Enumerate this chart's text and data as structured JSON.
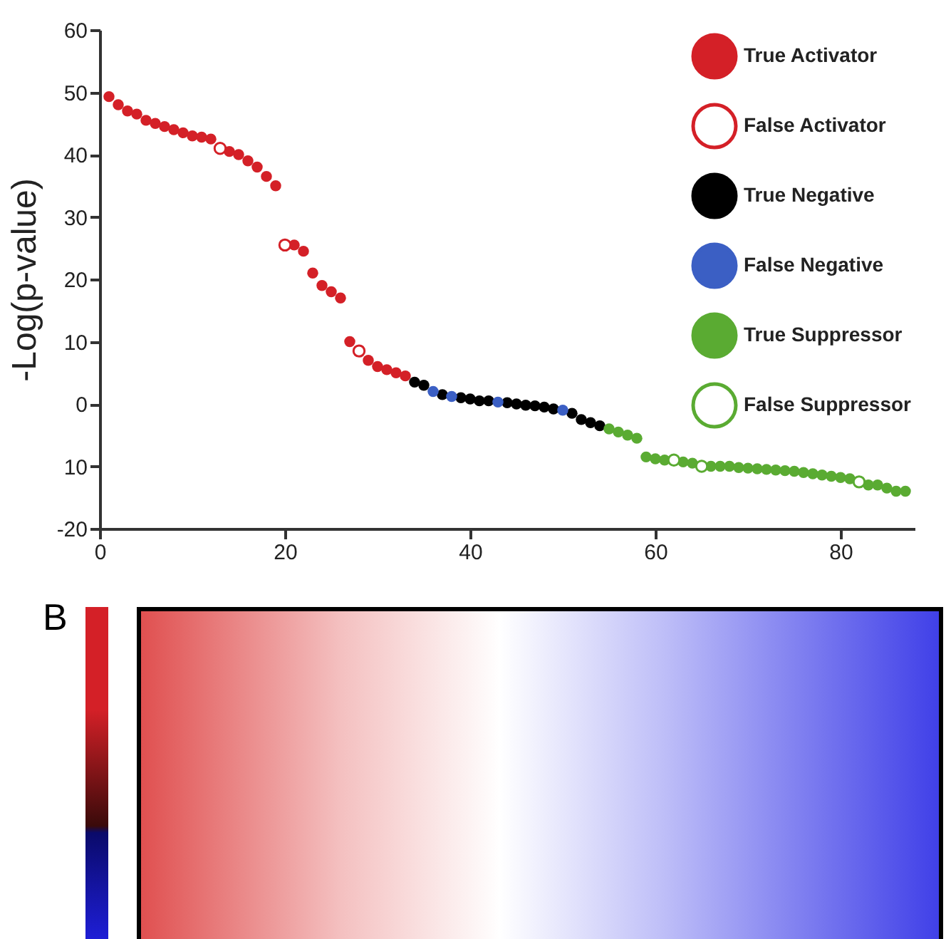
{
  "chart_data": {
    "type": "scatter",
    "ylabel": "-Log(p-value)",
    "xlim": [
      0,
      88
    ],
    "xticks": [
      0,
      20,
      40,
      60,
      80
    ],
    "ylim": [
      -20,
      60
    ],
    "yticks": [
      {
        "value": -20,
        "label": "-20"
      },
      {
        "value": -10,
        "label": "10"
      },
      0,
      10,
      20,
      30,
      40,
      50,
      60
    ],
    "legend": "top right",
    "grid": false,
    "annotations": [
      "B"
    ],
    "series": [
      {
        "name": "True Activator",
        "color": "#d42027",
        "marker": "circle",
        "x": [
          1,
          2,
          3,
          4,
          5,
          6,
          7,
          8,
          9,
          10,
          11,
          12,
          14,
          15,
          16,
          17,
          18,
          19,
          21,
          22,
          23,
          24,
          25,
          26,
          27,
          29,
          30,
          31,
          32,
          33
        ],
        "values": [
          49.3,
          48,
          47,
          46.5,
          45.5,
          45,
          44.5,
          44,
          43.5,
          43,
          42.8,
          42.5,
          40.5,
          40,
          39,
          38,
          36.5,
          35,
          25.5,
          24.5,
          21,
          19,
          18,
          17,
          10,
          7,
          6,
          5.5,
          5,
          4.5
        ]
      },
      {
        "name": "False Activator",
        "color": "#d42027",
        "marker": "open circle",
        "x": [
          13,
          20,
          28
        ],
        "values": [
          41,
          25.5,
          8.5
        ]
      },
      {
        "name": "True Negative",
        "color": "#000000",
        "marker": "circle",
        "x": [
          34,
          35,
          37,
          39,
          40,
          41,
          42,
          44,
          45,
          46,
          47,
          48,
          49,
          51,
          52,
          53,
          54
        ],
        "values": [
          3.5,
          3,
          1.5,
          1,
          0.8,
          0.5,
          0.5,
          0.2,
          0,
          -0.2,
          -0.3,
          -0.5,
          -0.8,
          -1.5,
          -2.5,
          -3,
          -3.5
        ]
      },
      {
        "name": "False Negative",
        "color": "#3b5fc4",
        "marker": "circle",
        "x": [
          36,
          38,
          43,
          50
        ],
        "values": [
          2,
          1.2,
          0.3,
          -1
        ]
      },
      {
        "name": "True Suppressor",
        "color": "#5aab32",
        "marker": "circle",
        "x": [
          55,
          56,
          57,
          58,
          59,
          60,
          61,
          63,
          64,
          66,
          67,
          68,
          69,
          70,
          71,
          72,
          73,
          74,
          75,
          76,
          77,
          78,
          79,
          80,
          81,
          83,
          84,
          85,
          86,
          87
        ],
        "values": [
          -4,
          -4.5,
          -5,
          -5.5,
          -8.5,
          -8.8,
          -9,
          -9.3,
          -9.5,
          -10,
          -10,
          -10,
          -10.2,
          -10.3,
          -10.4,
          -10.5,
          -10.6,
          -10.7,
          -10.8,
          -11,
          -11.2,
          -11.4,
          -11.6,
          -11.8,
          -12,
          -13,
          -13,
          -13.5,
          -14,
          -14
        ]
      },
      {
        "name": "False Suppressor",
        "color": "#5aab32",
        "marker": "open circle",
        "x": [
          62,
          65,
          82
        ],
        "values": [
          -9,
          -10,
          -12.5
        ]
      }
    ]
  }
}
